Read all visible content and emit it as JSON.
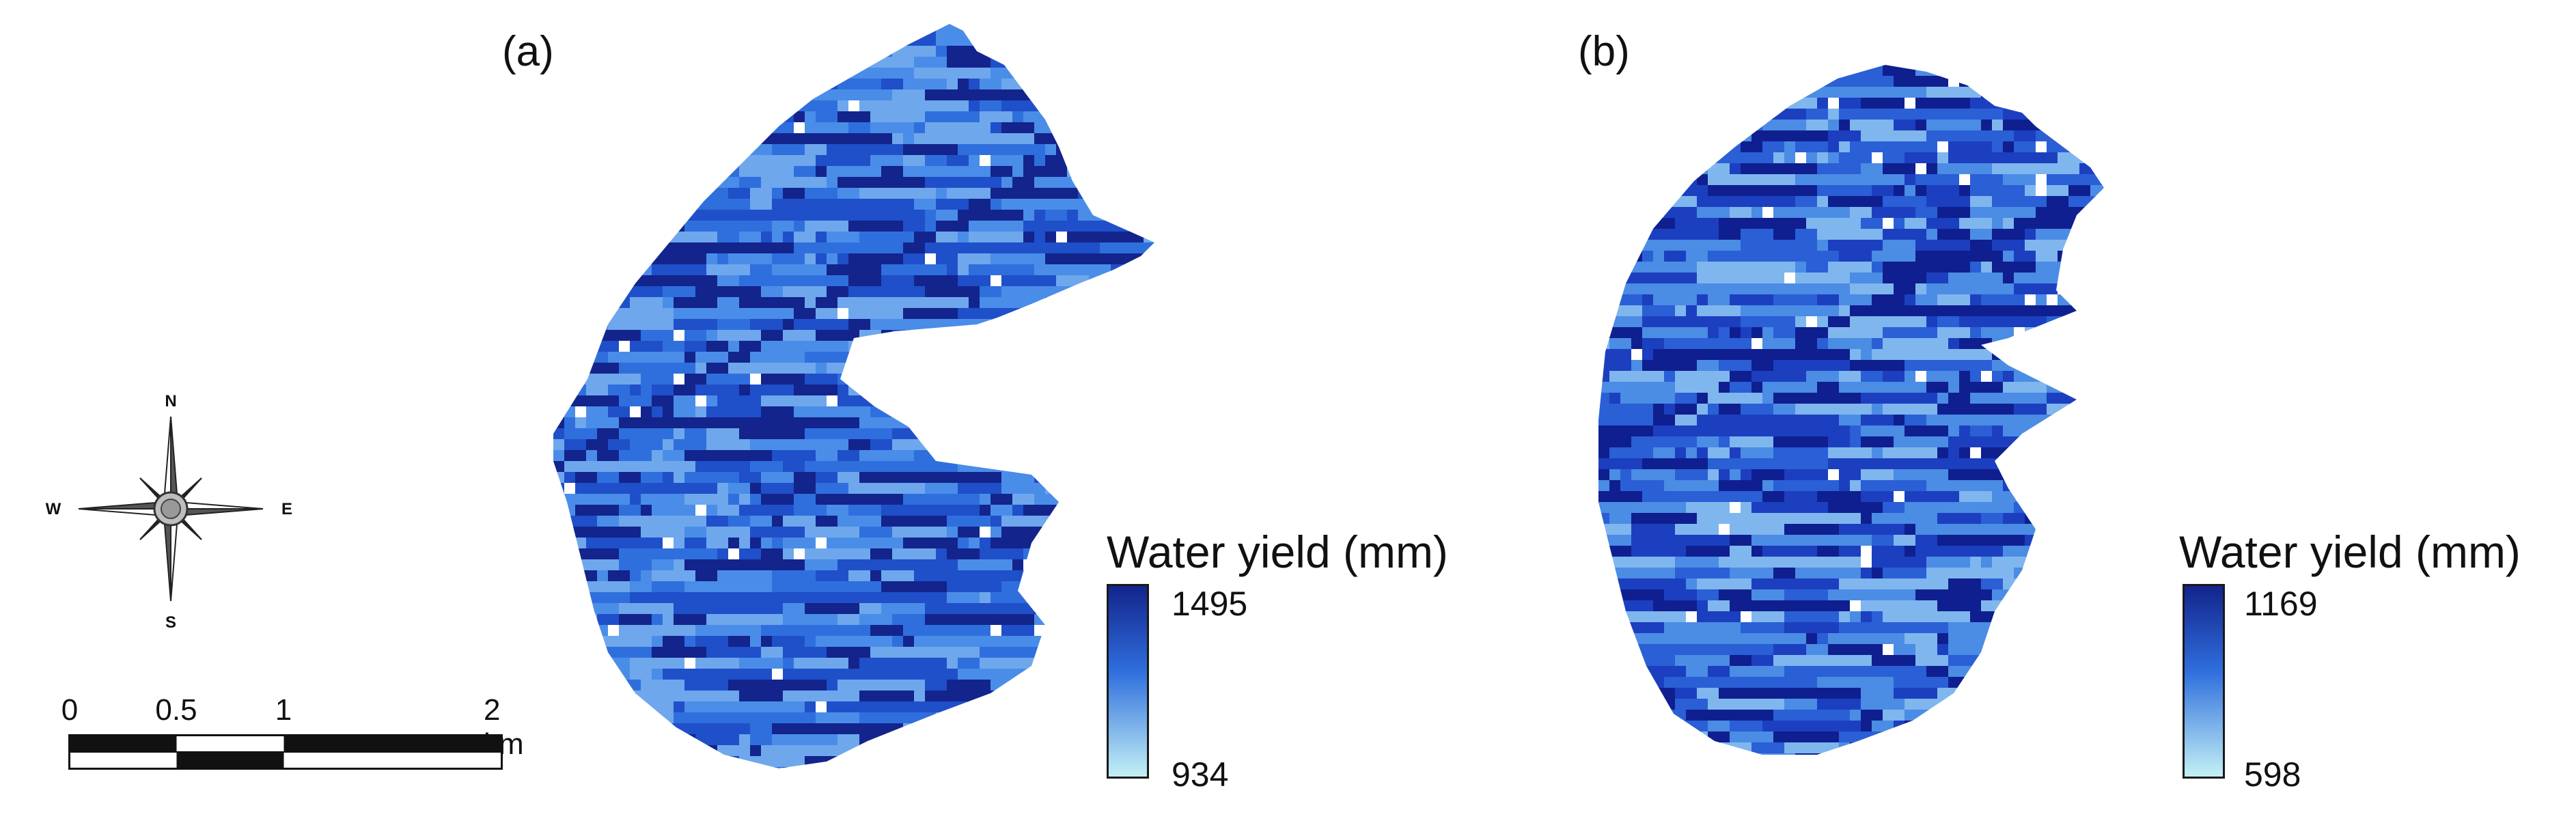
{
  "panels": [
    {
      "label": "(a)",
      "legend": {
        "title": "Water yield (mm)",
        "max": "1495",
        "min": "934",
        "color_high": "#13248c",
        "color_mid": "#2f6fdd",
        "color_low": "#c3f1f5"
      },
      "palette": [
        "#13248c",
        "#1f4fc9",
        "#2f6fdd",
        "#4a8de8",
        "#6ea7ec"
      ]
    },
    {
      "label": "(b)",
      "legend": {
        "title": "Water yield (mm)",
        "max": "1169",
        "min": "598",
        "color_high": "#13248c",
        "color_mid": "#2f6fdd",
        "color_low": "#c3f1f5"
      },
      "palette": [
        "#0f1f8f",
        "#1c3fc0",
        "#2a5fd6",
        "#4b8ce4",
        "#7fb6ee"
      ]
    }
  ],
  "compass": {
    "north": "N",
    "south": "S",
    "east": "E",
    "west": "W"
  },
  "scale_bar": {
    "labels": [
      "0",
      "0.5",
      "1",
      "2 km"
    ]
  }
}
